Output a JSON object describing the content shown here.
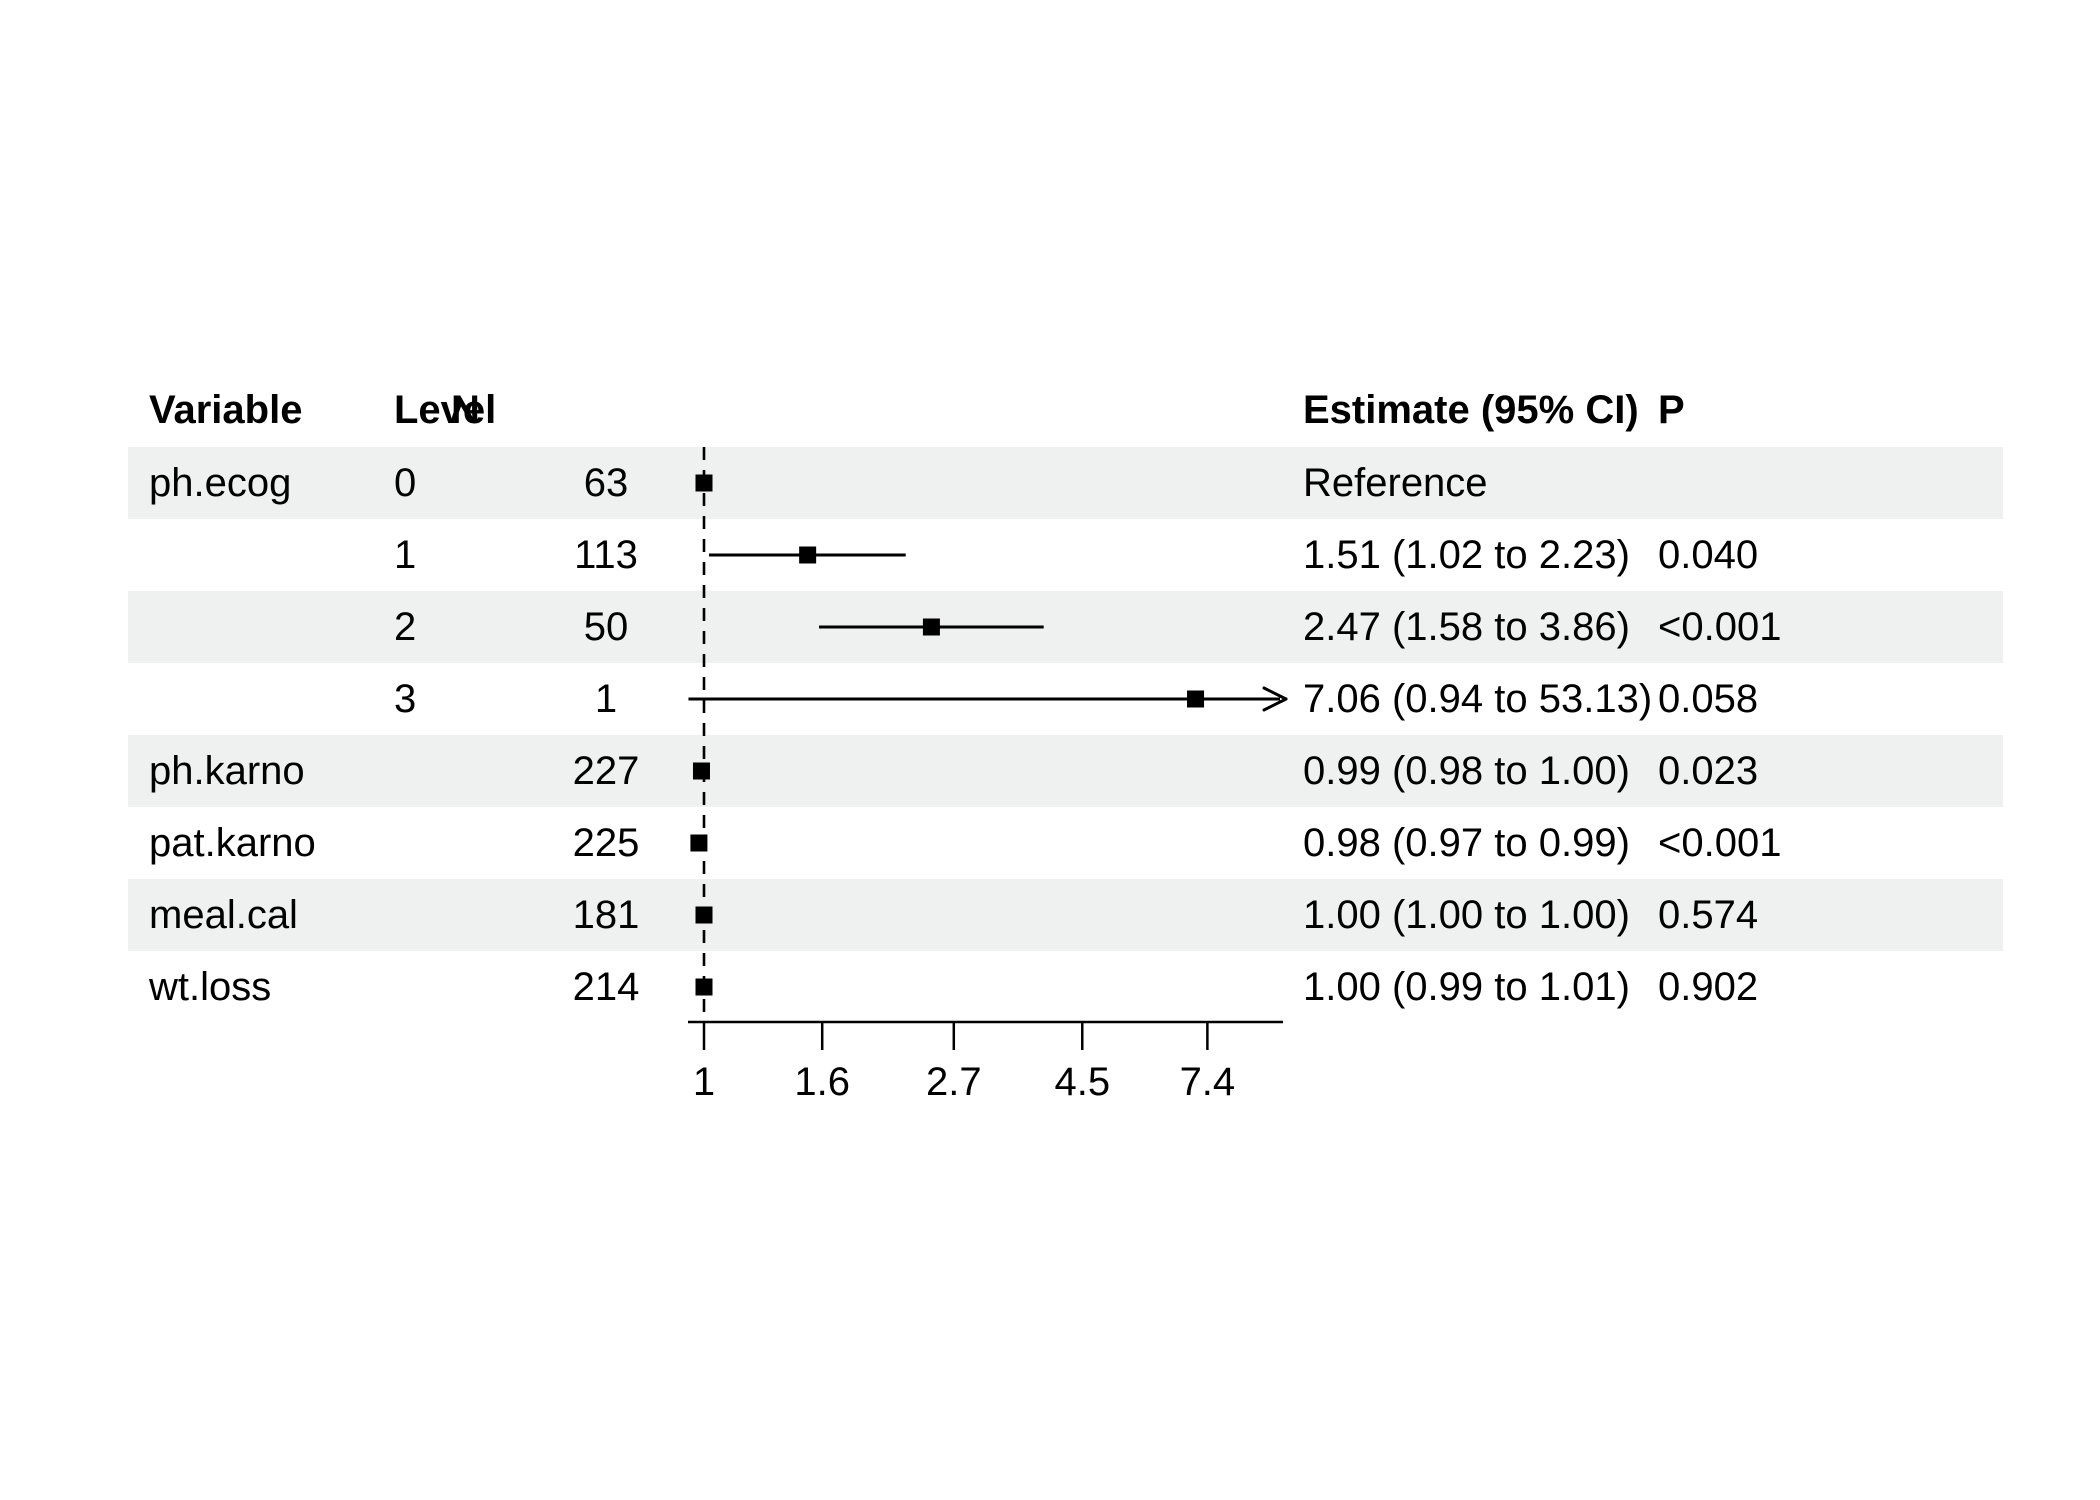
{
  "colors": {
    "background": "#ffffff",
    "row_shade": "#eff1f0",
    "ink": "#000000"
  },
  "table": {
    "headers": {
      "variable": "Variable",
      "level": "Level",
      "n": "N",
      "estimate": "Estimate (95% CI)",
      "p": "P"
    }
  },
  "chart_data": {
    "type": "forest",
    "x_scale": "log",
    "x_ticks": [
      "1",
      "1.6",
      "2.7",
      "4.5",
      "7.4"
    ],
    "x_tick_values": [
      1,
      1.6,
      2.7,
      4.5,
      7.4
    ],
    "x_axis_range": [
      0.94,
      10
    ],
    "reference_line": 1,
    "grid": false,
    "legend": "none",
    "rows": [
      {
        "variable": "ph.ecog",
        "level": "0",
        "n": "63",
        "estimate": "Reference",
        "p": "",
        "point": 1.0,
        "ci_low": null,
        "ci_high": null,
        "arrow": false,
        "shaded": true
      },
      {
        "variable": "",
        "level": "1",
        "n": "113",
        "estimate": "1.51 (1.02 to 2.23)",
        "p": "0.040",
        "point": 1.51,
        "ci_low": 1.02,
        "ci_high": 2.23,
        "arrow": false,
        "shaded": false
      },
      {
        "variable": "",
        "level": "2",
        "n": "50",
        "estimate": "2.47 (1.58 to 3.86)",
        "p": "<0.001",
        "point": 2.47,
        "ci_low": 1.58,
        "ci_high": 3.86,
        "arrow": false,
        "shaded": true
      },
      {
        "variable": "",
        "level": "3",
        "n": "1",
        "estimate": "7.06 (0.94 to 53.13)",
        "p": "0.058",
        "point": 7.06,
        "ci_low": 0.94,
        "ci_high": 53.13,
        "arrow": true,
        "shaded": false
      },
      {
        "variable": "ph.karno",
        "level": "",
        "n": "227",
        "estimate": "0.99 (0.98 to 1.00)",
        "p": "0.023",
        "point": 0.99,
        "ci_low": 0.98,
        "ci_high": 1.0,
        "arrow": false,
        "shaded": true
      },
      {
        "variable": "pat.karno",
        "level": "",
        "n": "225",
        "estimate": "0.98 (0.97 to 0.99)",
        "p": "<0.001",
        "point": 0.98,
        "ci_low": 0.97,
        "ci_high": 0.99,
        "arrow": false,
        "shaded": false
      },
      {
        "variable": "meal.cal",
        "level": "",
        "n": "181",
        "estimate": "1.00 (1.00 to 1.00)",
        "p": "0.574",
        "point": 1.0,
        "ci_low": 1.0,
        "ci_high": 1.0,
        "arrow": false,
        "shaded": true
      },
      {
        "variable": "wt.loss",
        "level": "",
        "n": "214",
        "estimate": "1.00 (0.99 to 1.01)",
        "p": "0.902",
        "point": 1.0,
        "ci_low": 0.99,
        "ci_high": 1.01,
        "arrow": false,
        "shaded": false
      }
    ]
  }
}
